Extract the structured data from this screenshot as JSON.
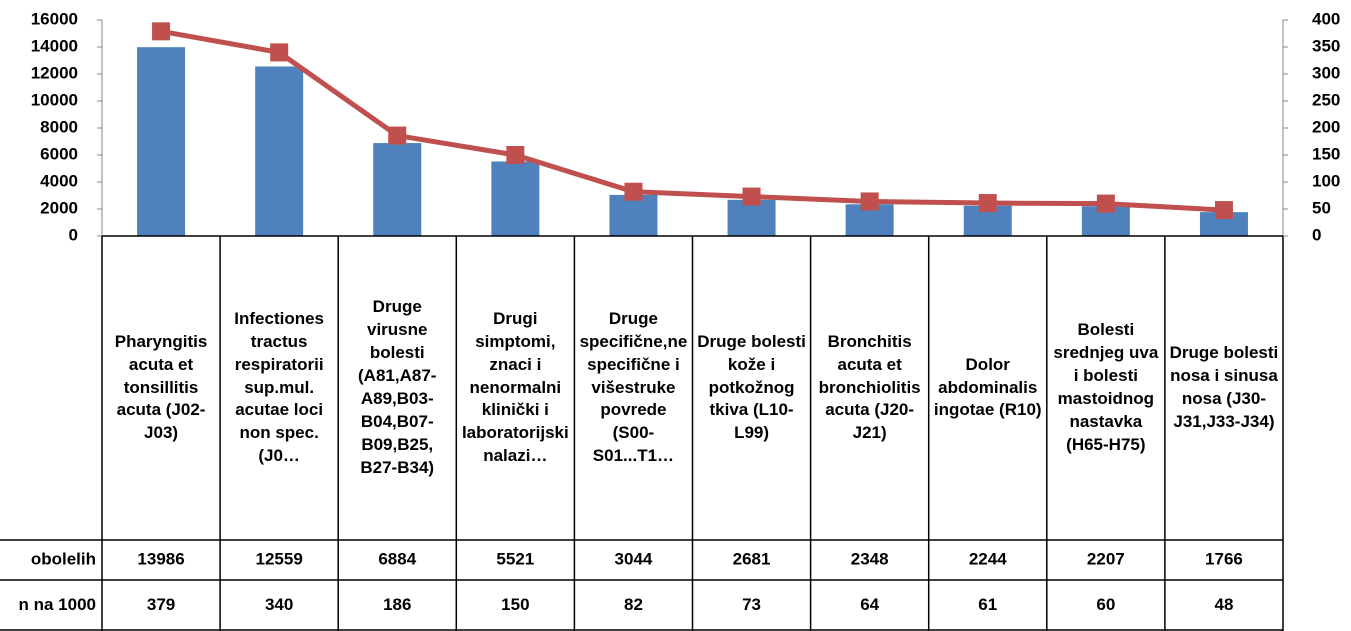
{
  "chart_data": {
    "type": "bar_line_table",
    "categories": [
      "Pharyngitis acuta et tonsillitis acuta (J02-J03)",
      "Infectiones tractus respiratorii sup.mul. acutae loci non spec.(J0…",
      "Druge virusne bolesti (A81,A87-A89,B03-B04,B07-B09,B25, B27-B34)",
      "Drugi simptomi, znaci i nenormalni klinički i laboratorijski nalazi…",
      "Druge specifične,nespecifične i višestruke povrede (S00-S01...T1…",
      "Druge bolesti kože i potkožnog tkiva (L10-L99)",
      "Bronchitis acuta et bronchiolitis acuta (J20-J21)",
      "Dolor abdominalis ingotae (R10)",
      "Bolesti srednjeg uva i bolesti mastoidnog nastavka (H65-H75)",
      "Druge bolesti nosa i sinusa nosa (J30-J31,J33-J34)"
    ],
    "series": [
      {
        "name": "obolelih",
        "color": "#4f81bd",
        "values": [
          13986,
          12559,
          6884,
          5521,
          3044,
          2681,
          2348,
          2244,
          2207,
          1766
        ]
      },
      {
        "name": "n na 1000",
        "color": "#c0504d",
        "axis": "y2",
        "values": [
          379,
          340,
          186,
          150,
          82,
          73,
          64,
          61,
          60,
          48
        ]
      }
    ],
    "ylim": [
      0,
      16000
    ],
    "yticks": [
      0,
      2000,
      4000,
      6000,
      8000,
      10000,
      12000,
      14000,
      16000
    ],
    "y2lim": [
      0,
      400
    ],
    "y2ticks": [
      0,
      50,
      100,
      150,
      200,
      250,
      300,
      350,
      400
    ]
  }
}
